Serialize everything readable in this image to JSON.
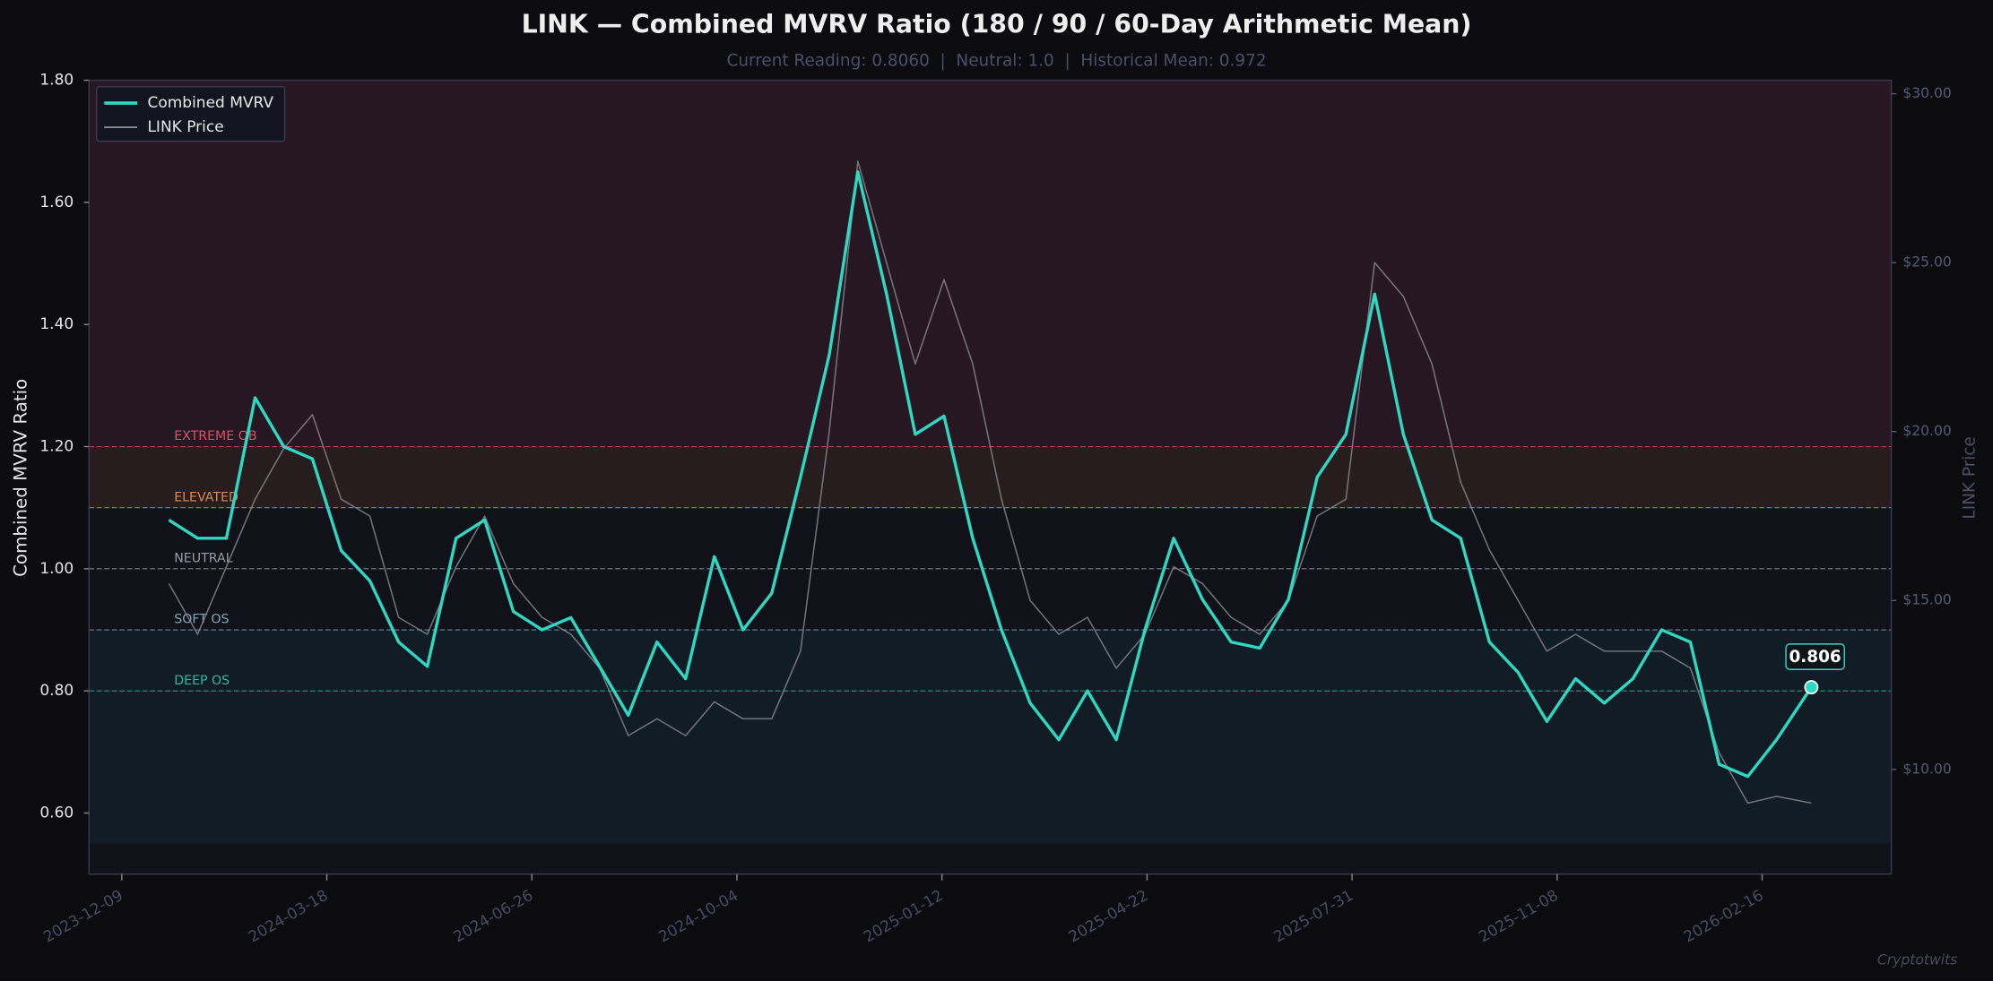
{
  "chart_data": {
    "type": "line",
    "title": "LINK — Combined MVRV Ratio (180 / 90 / 60-Day Arithmetic Mean)",
    "subtitle": "Current Reading: 0.8060  |  Neutral: 1.0  |  Historical Mean: 0.972",
    "ylabel": "Combined MVRV Ratio",
    "y2label": "LINK Price",
    "watermark": "Cryptotwits",
    "x": [
      "2024-01-01",
      "2024-01-15",
      "2024-01-29",
      "2024-02-12",
      "2024-02-26",
      "2024-03-11",
      "2024-03-25",
      "2024-04-08",
      "2024-04-22",
      "2024-05-06",
      "2024-05-20",
      "2024-06-03",
      "2024-06-17",
      "2024-07-01",
      "2024-07-15",
      "2024-07-29",
      "2024-08-12",
      "2024-08-26",
      "2024-09-09",
      "2024-09-23",
      "2024-10-07",
      "2024-10-21",
      "2024-11-04",
      "2024-11-18",
      "2024-12-02",
      "2024-12-16",
      "2024-12-30",
      "2025-01-13",
      "2025-01-27",
      "2025-02-10",
      "2025-02-24",
      "2025-03-10",
      "2025-03-24",
      "2025-04-07",
      "2025-04-21",
      "2025-05-05",
      "2025-05-19",
      "2025-06-02",
      "2025-06-16",
      "2025-06-30",
      "2025-07-14",
      "2025-07-28",
      "2025-08-11",
      "2025-08-25",
      "2025-09-08",
      "2025-09-22",
      "2025-10-06",
      "2025-10-20",
      "2025-11-03",
      "2025-11-17",
      "2025-12-01",
      "2025-12-15",
      "2025-12-29",
      "2026-01-12",
      "2026-01-26",
      "2026-02-09",
      "2026-02-23",
      "2026-03-12"
    ],
    "series": [
      {
        "name": "Combined MVRV",
        "color": "#2ed8c3",
        "values": [
          1.08,
          1.05,
          1.05,
          1.28,
          1.2,
          1.18,
          1.03,
          0.98,
          0.88,
          0.84,
          1.05,
          1.08,
          0.93,
          0.9,
          0.92,
          0.84,
          0.76,
          0.88,
          0.82,
          1.02,
          0.9,
          0.96,
          1.15,
          1.35,
          1.65,
          1.45,
          1.22,
          1.25,
          1.05,
          0.9,
          0.78,
          0.72,
          0.8,
          0.72,
          0.9,
          1.05,
          0.95,
          0.88,
          0.87,
          0.95,
          1.15,
          1.22,
          1.45,
          1.22,
          1.08,
          1.05,
          0.88,
          0.83,
          0.75,
          0.82,
          0.78,
          0.82,
          0.9,
          0.88,
          0.68,
          0.66,
          0.72,
          0.806
        ]
      },
      {
        "name": "LINK Price",
        "color": "#8a8a90",
        "axis": "y2",
        "values": [
          15.5,
          14.0,
          16.0,
          18.0,
          19.5,
          20.5,
          18.0,
          17.5,
          14.5,
          14.0,
          16.0,
          17.5,
          15.5,
          14.5,
          14.0,
          13.0,
          11.0,
          11.5,
          11.0,
          12.0,
          11.5,
          11.5,
          13.5,
          20.0,
          28.0,
          25.0,
          22.0,
          24.5,
          22.0,
          18.0,
          15.0,
          14.0,
          14.5,
          13.0,
          14.0,
          16.0,
          15.5,
          14.5,
          14.0,
          15.0,
          17.5,
          18.0,
          25.0,
          24.0,
          22.0,
          18.5,
          16.5,
          15.0,
          13.5,
          14.0,
          13.5,
          13.5,
          13.5,
          13.0,
          10.5,
          9.0,
          9.2,
          9.0
        ]
      }
    ],
    "xlim": [
      "2023-11-23",
      "2026-04-20"
    ],
    "xticks": [
      "2023-12-09",
      "2024-03-18",
      "2024-06-26",
      "2024-10-04",
      "2025-01-12",
      "2025-04-22",
      "2025-07-31",
      "2025-11-08",
      "2026-02-16"
    ],
    "ylim": [
      0.5,
      1.8
    ],
    "yticks": [
      {
        "value": 0.6,
        "label": "0.60"
      },
      {
        "value": 0.8,
        "label": "0.80"
      },
      {
        "value": 1.0,
        "label": "1.00"
      },
      {
        "value": 1.2,
        "label": "1.20"
      },
      {
        "value": 1.4,
        "label": "1.40"
      },
      {
        "value": 1.6,
        "label": "1.60"
      },
      {
        "value": 1.8,
        "label": "1.80"
      }
    ],
    "y2lim": [
      6.9,
      30.4
    ],
    "y2ticks": [
      {
        "value": 10,
        "label": "$10.00"
      },
      {
        "value": 15,
        "label": "$15.00"
      },
      {
        "value": 20,
        "label": "$20.00"
      },
      {
        "value": 25,
        "label": "$25.00"
      },
      {
        "value": 30,
        "label": "$30.00"
      }
    ],
    "bands": [
      {
        "from": 1.2,
        "to": 1.8,
        "color": "#2a1824"
      },
      {
        "from": 1.1,
        "to": 1.2,
        "color": "#2a1f20"
      },
      {
        "from": 0.55,
        "to": 0.9,
        "color": "#121e26"
      }
    ],
    "reference_lines": [
      {
        "value": 1.2,
        "label": "EXTREME OB",
        "color": "#d9506a"
      },
      {
        "value": 1.1,
        "label": "ELEVATED",
        "color": "#d98a50"
      },
      {
        "value": 1.0,
        "label": "NEUTRAL",
        "color": "#9a9aa8"
      },
      {
        "value": 0.9,
        "label": "SOFT OS",
        "color": "#7ea8b8"
      },
      {
        "value": 0.8,
        "label": "DEEP OS",
        "color": "#2eb8a4"
      }
    ],
    "legend": "upper left"
  }
}
